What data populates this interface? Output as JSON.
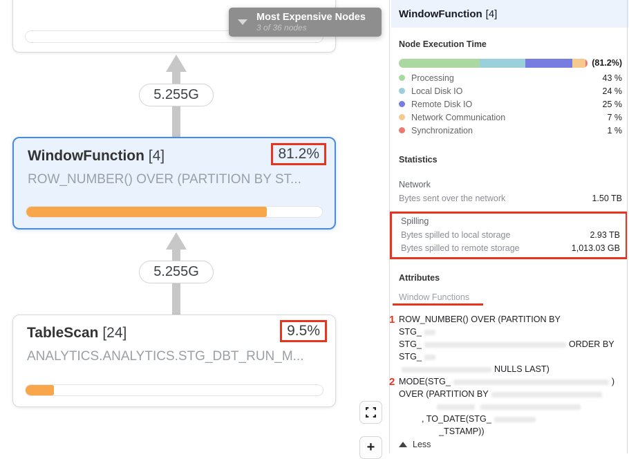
{
  "canvas": {
    "tooltip": {
      "title": "Most Expensive Nodes",
      "subtitle": "3 of 36 nodes"
    },
    "edges": [
      {
        "label": "5.255G"
      },
      {
        "label": "5.255G"
      }
    ],
    "nodes": [
      {
        "name": "WindowFunction",
        "count": "[4]",
        "percent": "81.2%",
        "subtitle": "ROW_NUMBER() OVER (PARTITION BY ST...",
        "progress": 81.2
      },
      {
        "name": "TableScan",
        "count": "[24]",
        "percent": "9.5%",
        "subtitle": "ANALYTICS.ANALYTICS.STG_DBT_RUN_M...",
        "progress": 9.5
      }
    ],
    "controls": {
      "zoom_in_label": "+"
    },
    "icons": {
      "tooltip_chevron": "chevron-down",
      "fullscreen": "expand-corners",
      "zoom_in": "plus"
    }
  },
  "panel": {
    "title": "WindowFunction",
    "title_count": "[4]",
    "execution_time": {
      "heading": "Node Execution Time",
      "total_label": "(81.2%)",
      "segments": [
        {
          "label": "Processing",
          "value": "43 %",
          "pct": 43,
          "color": "#a9d8a1"
        },
        {
          "label": "Local Disk IO",
          "value": "24 %",
          "pct": 24,
          "color": "#9ad0dc"
        },
        {
          "label": "Remote Disk IO",
          "value": "25 %",
          "pct": 25,
          "color": "#767ce0"
        },
        {
          "label": "Network Communication",
          "value": "7 %",
          "pct": 7,
          "color": "#f6c98e"
        },
        {
          "label": "Synchronization",
          "value": "1 %",
          "pct": 1,
          "color": "#ec7a70"
        }
      ]
    },
    "statistics": {
      "heading": "Statistics",
      "network_group": "Network",
      "network_rows": [
        {
          "label": "Bytes sent over the network",
          "value": "1.50 TB"
        }
      ],
      "spilling_group": "Spilling",
      "spilling_rows": [
        {
          "label": "Bytes spilled to local storage",
          "value": "2.93 TB"
        },
        {
          "label": "Bytes spilled to remote storage",
          "value": "1,013.03 GB"
        }
      ]
    },
    "attributes": {
      "heading": "Attributes",
      "subheading": "Window Functions",
      "marker1": "1",
      "marker2": "2",
      "lines": {
        "l1": "ROW_NUMBER() OVER (PARTITION BY",
        "l2": "STG_",
        "l3a": "STG_",
        "l3b": "ORDER BY",
        "l4": "STG_",
        "l5": "NULLS LAST)",
        "l6a": "MODE(STG_",
        "l6b": ")",
        "l7": "OVER (PARTITION BY",
        "l9": ", TO_DATE(STG_",
        "l10": "_TSTAMP))"
      },
      "less_label": "Less"
    },
    "annotation_color": "#e8341c"
  }
}
